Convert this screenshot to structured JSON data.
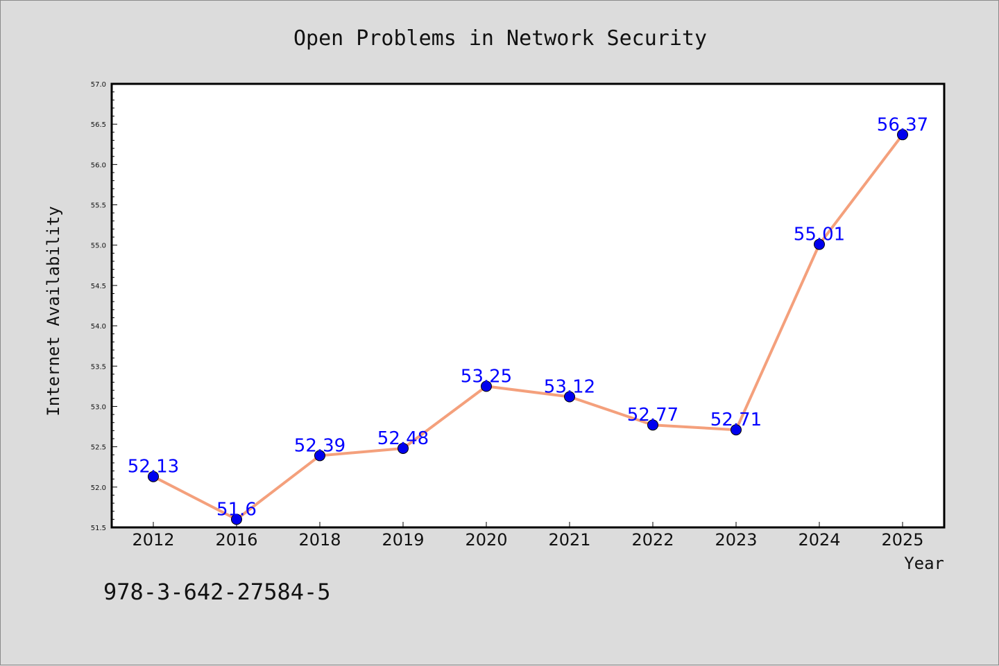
{
  "chart_data": {
    "type": "line",
    "title": "Open Problems in Network Security",
    "xlabel": "Year",
    "ylabel": "Internet Availability",
    "categories": [
      "2012",
      "2016",
      "2018",
      "2019",
      "2020",
      "2021",
      "2022",
      "2023",
      "2024",
      "2025"
    ],
    "series": [
      {
        "values": [
          52.13,
          51.6,
          52.39,
          52.48,
          53.25,
          53.12,
          52.77,
          52.71,
          55.01,
          56.37
        ],
        "labels": [
          "52.13",
          "51.6",
          "52.39",
          "52.48",
          "53.25",
          "53.12",
          "52.77",
          "52.71",
          "55.01",
          "56.37"
        ],
        "line_color": "#f4a07c",
        "marker_color": "#0000ee"
      }
    ],
    "ylim": [
      51.5,
      57.0
    ],
    "yticks": [
      "51.5",
      "52.0",
      "52.5",
      "53.0",
      "53.5",
      "54.0",
      "54.5",
      "55.0",
      "55.5",
      "56.0",
      "56.5",
      "57.0"
    ],
    "grid": false,
    "legend": "none",
    "label_color": "#0000ff"
  },
  "footnote": "978-3-642-27584-5",
  "colors": {
    "background": "#dcdcdc",
    "plot_area": "#ffffff",
    "axis": "#000000"
  }
}
